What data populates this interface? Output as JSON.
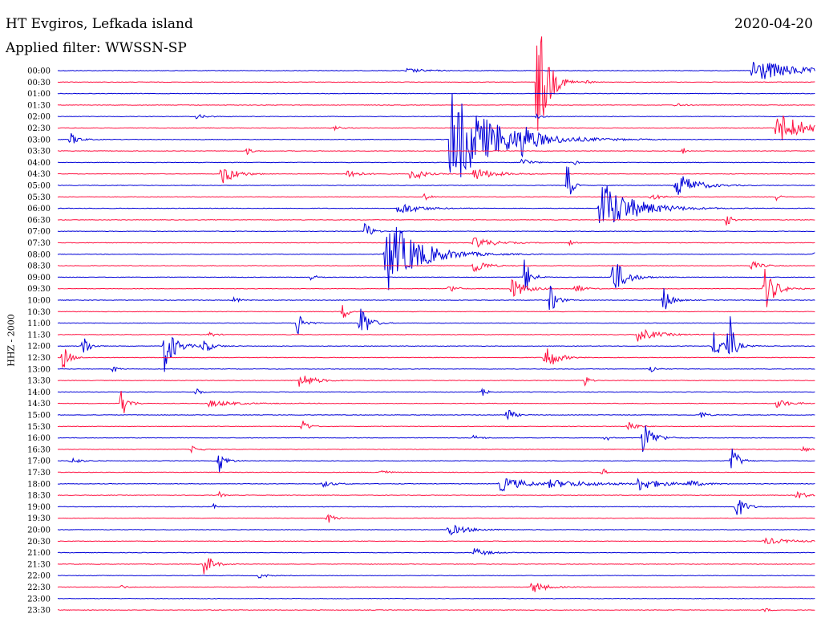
{
  "header": {
    "station": "HT Evgiros, Lefkada island",
    "filter": "Applied filter: WWSSN-SP",
    "date": "2020-04-20"
  },
  "channel_label": "HHZ - 2000",
  "colors": {
    "line_a": "#0000d8",
    "line_b": "#ff1040"
  },
  "chart_data": {
    "type": "line",
    "row_labels": [
      "00:00",
      "00:30",
      "01:00",
      "01:30",
      "02:00",
      "02:30",
      "03:00",
      "03:30",
      "04:00",
      "04:30",
      "05:00",
      "05:30",
      "06:00",
      "06:30",
      "07:00",
      "07:30",
      "08:00",
      "08:30",
      "09:00",
      "09:30",
      "10:00",
      "10:30",
      "11:00",
      "11:30",
      "12:00",
      "12:30",
      "13:00",
      "13:30",
      "14:00",
      "14:30",
      "15:00",
      "15:30",
      "16:00",
      "16:30",
      "17:00",
      "17:30",
      "18:00",
      "18:30",
      "19:00",
      "19:30",
      "20:00",
      "20:30",
      "21:00",
      "21:30",
      "22:00",
      "22:30",
      "23:00",
      "23:30"
    ],
    "xlim": [
      0,
      30
    ],
    "events": [
      [
        0,
        27.5,
        3.0,
        1.2
      ],
      [
        0,
        13.8,
        1.5,
        0.2
      ],
      [
        1,
        19.0,
        0.8,
        7.0
      ],
      [
        1,
        21.0,
        0.3,
        0.2
      ],
      [
        3,
        24.5,
        0.5,
        0.2
      ],
      [
        4,
        5.5,
        0.8,
        0.2
      ],
      [
        4,
        19.0,
        0.4,
        0.2
      ],
      [
        5,
        28.5,
        2.0,
        1.6
      ],
      [
        5,
        11.0,
        0.5,
        0.2
      ],
      [
        6,
        0.5,
        0.6,
        0.6
      ],
      [
        6,
        15.5,
        3.5,
        4.5
      ],
      [
        6,
        18.4,
        0.6,
        1.2
      ],
      [
        7,
        7.5,
        0.4,
        0.3
      ],
      [
        7,
        24.8,
        0.2,
        0.3
      ],
      [
        8,
        18.4,
        0.6,
        0.5
      ],
      [
        8,
        20.5,
        0.2,
        0.3
      ],
      [
        9,
        6.5,
        1.0,
        1.0
      ],
      [
        9,
        11.5,
        0.8,
        0.5
      ],
      [
        9,
        14.0,
        0.8,
        0.8
      ],
      [
        9,
        16.5,
        1.5,
        0.6
      ],
      [
        10,
        20.2,
        0.3,
        2.5
      ],
      [
        10,
        24.5,
        1.5,
        1.2
      ],
      [
        11,
        14.5,
        0.4,
        0.4
      ],
      [
        11,
        23.5,
        0.8,
        0.3
      ],
      [
        11,
        28.5,
        0.2,
        0.5
      ],
      [
        12,
        13.5,
        1.5,
        0.6
      ],
      [
        12,
        21.5,
        2.5,
        2.5
      ],
      [
        13,
        26.5,
        0.4,
        0.6
      ],
      [
        14,
        12.2,
        0.4,
        1.2
      ],
      [
        15,
        16.5,
        1.5,
        0.5
      ],
      [
        15,
        20.3,
        0.3,
        0.3
      ],
      [
        16,
        13.0,
        2.5,
        3.5
      ],
      [
        16,
        30.0,
        0.3,
        0.4
      ],
      [
        17,
        16.5,
        0.8,
        0.8
      ],
      [
        17,
        27.5,
        0.8,
        0.4
      ],
      [
        18,
        18.5,
        0.5,
        1.8
      ],
      [
        18,
        22.0,
        1.0,
        1.8
      ],
      [
        18,
        10.0,
        0.5,
        0.3
      ],
      [
        19,
        18.0,
        1.0,
        1.0
      ],
      [
        19,
        20.5,
        0.6,
        0.5
      ],
      [
        19,
        28.0,
        0.8,
        2.2
      ],
      [
        19,
        15.5,
        0.6,
        0.4
      ],
      [
        20,
        19.5,
        0.5,
        1.5
      ],
      [
        20,
        24.0,
        0.6,
        1.2
      ],
      [
        20,
        7.0,
        0.4,
        0.3
      ],
      [
        21,
        11.3,
        0.4,
        0.8
      ],
      [
        22,
        9.5,
        0.5,
        1.2
      ],
      [
        22,
        12.0,
        0.6,
        2.0
      ],
      [
        23,
        6.0,
        0.4,
        0.3
      ],
      [
        23,
        23.0,
        1.5,
        0.6
      ],
      [
        24,
        1.0,
        0.4,
        1.5
      ],
      [
        24,
        4.2,
        0.8,
        2.5
      ],
      [
        24,
        5.7,
        0.7,
        0.8
      ],
      [
        24,
        26.0,
        1.0,
        1.2
      ],
      [
        24,
        26.6,
        0.3,
        3.5
      ],
      [
        25,
        19.3,
        0.8,
        1.5
      ],
      [
        25,
        0.2,
        0.5,
        1.2
      ],
      [
        26,
        2.2,
        0.3,
        0.4
      ],
      [
        26,
        23.5,
        0.4,
        0.4
      ],
      [
        27,
        9.6,
        1.0,
        0.8
      ],
      [
        27,
        20.9,
        0.3,
        0.6
      ],
      [
        28,
        5.5,
        0.3,
        0.5
      ],
      [
        28,
        16.8,
        0.3,
        0.6
      ],
      [
        29,
        2.5,
        0.5,
        1.5
      ],
      [
        29,
        6.0,
        2.0,
        0.3
      ],
      [
        29,
        28.5,
        1.0,
        0.4
      ],
      [
        30,
        17.8,
        0.5,
        0.7
      ],
      [
        30,
        25.5,
        0.4,
        0.4
      ],
      [
        31,
        9.7,
        0.4,
        0.8
      ],
      [
        31,
        22.6,
        0.6,
        0.6
      ],
      [
        32,
        23.2,
        0.8,
        1.6
      ],
      [
        32,
        21.7,
        0.3,
        0.4
      ],
      [
        32,
        16.5,
        0.5,
        0.3
      ],
      [
        33,
        5.3,
        0.6,
        0.3
      ],
      [
        33,
        29.5,
        0.5,
        0.3
      ],
      [
        34,
        6.4,
        0.5,
        1.0
      ],
      [
        34,
        26.7,
        0.5,
        1.6
      ],
      [
        34,
        0.5,
        0.6,
        0.4
      ],
      [
        35,
        12.8,
        0.5,
        0.3
      ],
      [
        35,
        21.6,
        0.2,
        0.5
      ],
      [
        36,
        17.5,
        2.0,
        0.7
      ],
      [
        36,
        23.0,
        1.6,
        0.6
      ],
      [
        36,
        19.5,
        4.0,
        0.3
      ],
      [
        36,
        25.0,
        1.0,
        0.3
      ],
      [
        36,
        10.5,
        0.8,
        0.3
      ],
      [
        37,
        29.3,
        0.6,
        0.5
      ],
      [
        37,
        6.4,
        0.3,
        0.3
      ],
      [
        38,
        26.9,
        0.6,
        1.2
      ],
      [
        38,
        6.2,
        0.2,
        0.3
      ],
      [
        39,
        10.7,
        0.5,
        0.5
      ],
      [
        40,
        15.5,
        1.5,
        0.5
      ],
      [
        41,
        28.0,
        2.0,
        0.3
      ],
      [
        42,
        16.5,
        1.0,
        0.4
      ],
      [
        43,
        5.8,
        0.6,
        1.2
      ],
      [
        44,
        8.0,
        0.5,
        0.3
      ],
      [
        45,
        18.8,
        1.0,
        0.6
      ],
      [
        45,
        2.5,
        0.4,
        0.2
      ],
      [
        47,
        28.0,
        0.4,
        0.2
      ]
    ]
  }
}
